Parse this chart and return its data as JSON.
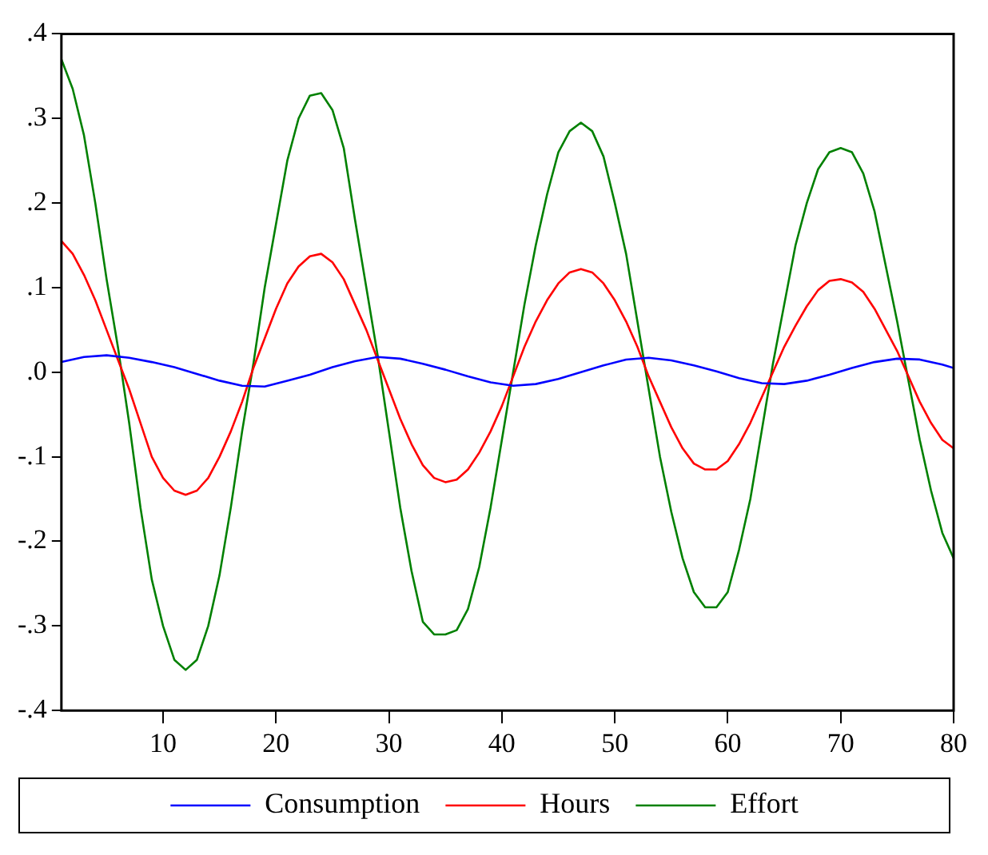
{
  "chart_data": {
    "type": "line",
    "xlim": [
      1,
      80
    ],
    "xticks": [
      10,
      20,
      30,
      40,
      50,
      60,
      70,
      80
    ],
    "ylim": [
      -0.4,
      0.4
    ],
    "yticks": [
      {
        "value": -0.4,
        "label": "-.4"
      },
      {
        "value": -0.3,
        "label": "-.3"
      },
      {
        "value": -0.2,
        "label": "-.2"
      },
      {
        "value": -0.1,
        "label": "-.1"
      },
      {
        "value": 0,
        "label": ".0"
      },
      {
        "value": 0.1,
        "label": ".1"
      },
      {
        "value": 0.2,
        "label": ".2"
      },
      {
        "value": 0.3,
        "label": ".3"
      },
      {
        "value": 0.4,
        "label": ".4"
      }
    ],
    "grid": false,
    "legend": "bottom",
    "marker": "none",
    "line_style": "solid",
    "series": [
      {
        "name": "Consumption",
        "color": "#0000ff",
        "x": [
          1,
          3,
          5,
          7,
          9,
          11,
          13,
          15,
          17,
          19,
          21,
          23,
          25,
          27,
          29,
          31,
          33,
          35,
          37,
          39,
          41,
          43,
          45,
          47,
          49,
          51,
          53,
          55,
          57,
          59,
          61,
          63,
          65,
          67,
          69,
          71,
          73,
          75,
          77,
          79,
          80
        ],
        "values": [
          0.012,
          0.018,
          0.02,
          0.017,
          0.012,
          0.006,
          -0.002,
          -0.01,
          -0.016,
          -0.017,
          -0.01,
          -0.003,
          0.006,
          0.013,
          0.018,
          0.016,
          0.01,
          0.003,
          -0.005,
          -0.012,
          -0.016,
          -0.014,
          -0.008,
          0,
          0.008,
          0.015,
          0.017,
          0.014,
          0.008,
          0.001,
          -0.007,
          -0.013,
          -0.014,
          -0.01,
          -0.003,
          0.005,
          0.012,
          0.016,
          0.015,
          0.009,
          0.005
        ]
      },
      {
        "name": "Hours",
        "color": "#ff0000",
        "x": [
          1,
          2,
          3,
          4,
          5,
          6,
          7,
          8,
          9,
          10,
          11,
          12,
          13,
          14,
          15,
          16,
          17,
          18,
          19,
          20,
          21,
          22,
          23,
          24,
          25,
          26,
          27,
          28,
          29,
          30,
          31,
          32,
          33,
          34,
          35,
          36,
          37,
          38,
          39,
          40,
          41,
          42,
          43,
          44,
          45,
          46,
          47,
          48,
          49,
          50,
          51,
          52,
          53,
          54,
          55,
          56,
          57,
          58,
          59,
          60,
          61,
          62,
          63,
          64,
          65,
          66,
          67,
          68,
          69,
          70,
          71,
          72,
          73,
          74,
          75,
          76,
          77,
          78,
          79,
          80
        ],
        "values": [
          0.155,
          0.14,
          0.115,
          0.085,
          0.05,
          0.015,
          -0.02,
          -0.06,
          -0.1,
          -0.125,
          -0.14,
          -0.145,
          -0.14,
          -0.125,
          -0.1,
          -0.07,
          -0.035,
          0.005,
          0.04,
          0.075,
          0.105,
          0.125,
          0.137,
          0.14,
          0.13,
          0.11,
          0.08,
          0.05,
          0.015,
          -0.02,
          -0.055,
          -0.085,
          -0.11,
          -0.125,
          -0.13,
          -0.127,
          -0.115,
          -0.095,
          -0.07,
          -0.04,
          -0.005,
          0.03,
          0.06,
          0.085,
          0.105,
          0.118,
          0.122,
          0.118,
          0.105,
          0.085,
          0.06,
          0.03,
          -0.005,
          -0.035,
          -0.065,
          -0.09,
          -0.108,
          -0.115,
          -0.115,
          -0.105,
          -0.085,
          -0.06,
          -0.03,
          0,
          0.03,
          0.055,
          0.078,
          0.097,
          0.108,
          0.11,
          0.106,
          0.095,
          0.075,
          0.05,
          0.025,
          -0.005,
          -0.035,
          -0.06,
          -0.08,
          -0.09
        ]
      },
      {
        "name": "Effort",
        "color": "#008000",
        "x": [
          1,
          2,
          3,
          4,
          5,
          6,
          7,
          8,
          9,
          10,
          11,
          12,
          13,
          14,
          15,
          16,
          17,
          18,
          19,
          20,
          21,
          22,
          23,
          24,
          25,
          26,
          27,
          28,
          29,
          30,
          31,
          32,
          33,
          34,
          35,
          36,
          37,
          38,
          39,
          40,
          41,
          42,
          43,
          44,
          45,
          46,
          47,
          48,
          49,
          50,
          51,
          52,
          53,
          54,
          55,
          56,
          57,
          58,
          59,
          60,
          61,
          62,
          63,
          64,
          65,
          66,
          67,
          68,
          69,
          70,
          71,
          72,
          73,
          74,
          75,
          76,
          77,
          78,
          79,
          80
        ],
        "values": [
          0.37,
          0.335,
          0.28,
          0.2,
          0.11,
          0.03,
          -0.06,
          -0.16,
          -0.245,
          -0.3,
          -0.34,
          -0.352,
          -0.34,
          -0.3,
          -0.24,
          -0.16,
          -0.07,
          0.01,
          0.1,
          0.175,
          0.25,
          0.3,
          0.327,
          0.33,
          0.31,
          0.265,
          0.18,
          0.1,
          0.02,
          -0.07,
          -0.16,
          -0.235,
          -0.295,
          -0.31,
          -0.31,
          -0.305,
          -0.28,
          -0.23,
          -0.16,
          -0.08,
          0,
          0.08,
          0.15,
          0.21,
          0.26,
          0.285,
          0.295,
          0.285,
          0.255,
          0.2,
          0.14,
          0.06,
          -0.02,
          -0.1,
          -0.165,
          -0.22,
          -0.26,
          -0.278,
          -0.278,
          -0.26,
          -0.21,
          -0.15,
          -0.07,
          0.01,
          0.08,
          0.15,
          0.2,
          0.24,
          0.26,
          0.265,
          0.26,
          0.235,
          0.19,
          0.125,
          0.06,
          -0.01,
          -0.08,
          -0.14,
          -0.19,
          -0.22
        ]
      }
    ]
  }
}
